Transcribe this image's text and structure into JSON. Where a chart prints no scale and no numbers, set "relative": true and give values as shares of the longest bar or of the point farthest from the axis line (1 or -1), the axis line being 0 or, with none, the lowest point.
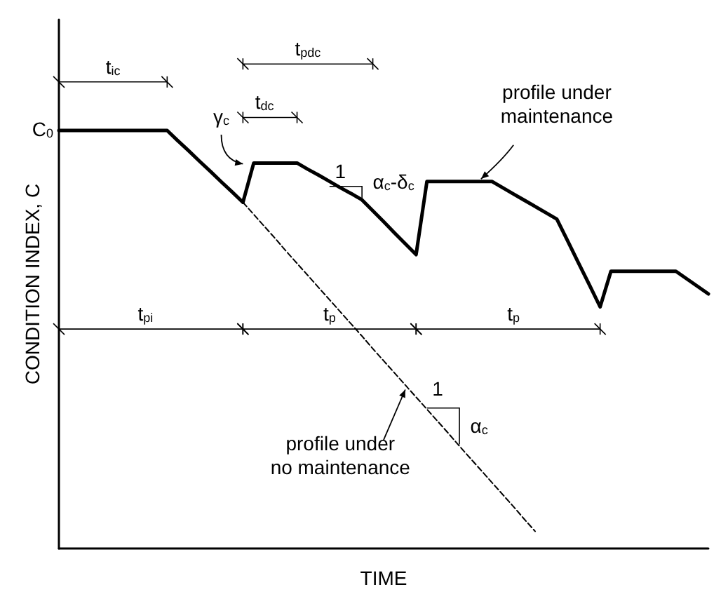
{
  "chart_data": {
    "type": "line",
    "relative": true,
    "xlabel": "TIME",
    "ylabel": "CONDITION INDEX, C",
    "categories": [
      null,
      null,
      null,
      null,
      null,
      null,
      null,
      null,
      null,
      null,
      null,
      null,
      null,
      null,
      null,
      null,
      null,
      null,
      null,
      null,
      null,
      null,
      null,
      null,
      null,
      null,
      null,
      null,
      null,
      null,
      null,
      null,
      null,
      null,
      null,
      null,
      null,
      null,
      null,
      null,
      null,
      null,
      null,
      null,
      null,
      null,
      null,
      null,
      null,
      null,
      null,
      null,
      null,
      null,
      null,
      null,
      null,
      null,
      null,
      null,
      null
    ],
    "series": [
      {
        "color": "#000000",
        "line_style": "solid",
        "values": [
          1,
          1,
          1,
          1,
          1,
          1,
          1,
          1,
          1,
          1,
          1,
          0.975,
          0.951,
          0.926,
          0.902,
          0.877,
          0.853,
          0.828,
          0.922,
          0.922,
          0.922,
          0.922,
          0.922,
          0.907,
          0.893,
          0.878,
          0.863,
          0.849,
          0.834,
          0.808,
          0.782,
          0.755,
          0.729,
          0.703,
          0.878,
          0.878,
          0.878,
          0.878,
          0.878,
          0.878,
          0.878,
          0.863,
          0.848,
          0.833,
          0.818,
          0.803,
          0.788,
          0.736,
          0.683,
          0.631,
          0.578,
          0.663,
          0.663,
          0.663,
          0.663,
          0.663,
          0.663,
          0.663,
          0.645,
          0.627,
          0.609
        ]
      },
      {
        "color": "#000000",
        "line_style": "dashed",
        "values": [
          null,
          null,
          null,
          null,
          null,
          null,
          null,
          null,
          null,
          null,
          null,
          null,
          null,
          null,
          null,
          null,
          null,
          0.828,
          0.799,
          0.77,
          0.741,
          0.711,
          0.682,
          0.653,
          0.624,
          0.595,
          0.566,
          0.537,
          0.508,
          0.478,
          0.449,
          0.42,
          0.391,
          0.362,
          0.333,
          0.304,
          0.275,
          0.245,
          0.216,
          0.187,
          0.158,
          0.129,
          0.1,
          0.07,
          0.041,
          null,
          null,
          null,
          null,
          null,
          null,
          null,
          null,
          null,
          null,
          null,
          null,
          null,
          null,
          null,
          null
        ]
      }
    ],
    "annotations": [
      "C$_{0}$",
      "t$_{ic}$",
      "t$_{pdc}$",
      "t$_{dc}$",
      "γ$_{c}$",
      "1",
      "α$_{c}$-δ$_{c}$",
      "profile under\nmaintenance",
      "t$_{pi}$",
      "t$_{p}$",
      "t$_{p}$",
      "1",
      "α$_{c}$",
      "profile under\nno maintenance"
    ]
  }
}
